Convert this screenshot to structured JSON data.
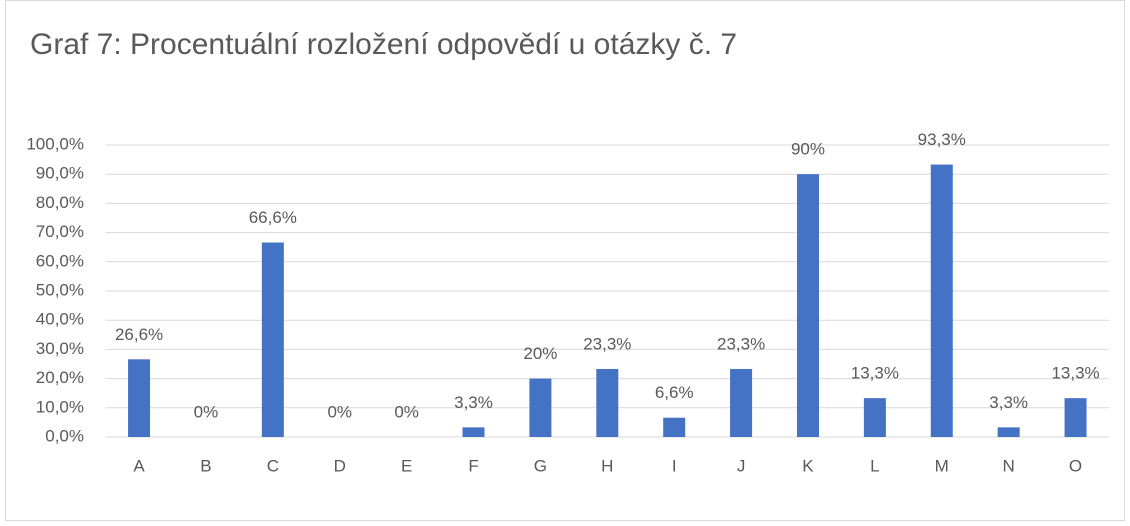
{
  "chart_data": {
    "type": "bar",
    "title": "Graf 7: Procentuální rozložení odpovědí u otázky č. 7",
    "categories": [
      "A",
      "B",
      "C",
      "D",
      "E",
      "F",
      "G",
      "H",
      "I",
      "J",
      "K",
      "L",
      "M",
      "N",
      "O"
    ],
    "values": [
      26.6,
      0,
      66.6,
      0,
      0,
      3.3,
      20,
      23.3,
      6.6,
      23.3,
      90,
      13.3,
      93.3,
      3.3,
      13.3
    ],
    "value_labels": [
      "26,6%",
      "0%",
      "66,6%",
      "0%",
      "0%",
      "3,3%",
      "20%",
      "23,3%",
      "6,6%",
      "23,3%",
      "90%",
      "13,3%",
      "93,3%",
      "3,3%",
      "13,3%"
    ],
    "color": "#4472c4",
    "ylim": [
      0,
      100
    ],
    "yticks": [
      {
        "value": 0,
        "label": "0,0%"
      },
      {
        "value": 10,
        "label": "10,0%"
      },
      {
        "value": 20,
        "label": "20,0%"
      },
      {
        "value": 30,
        "label": "30,0%"
      },
      {
        "value": 40,
        "label": "40,0%"
      },
      {
        "value": 50,
        "label": "50,0%"
      },
      {
        "value": 60,
        "label": "60,0%"
      },
      {
        "value": 70,
        "label": "70,0%"
      },
      {
        "value": 80,
        "label": "80,0%"
      },
      {
        "value": 90,
        "label": "90,0%"
      },
      {
        "value": 100,
        "label": "100,0%"
      }
    ],
    "grid": true
  }
}
